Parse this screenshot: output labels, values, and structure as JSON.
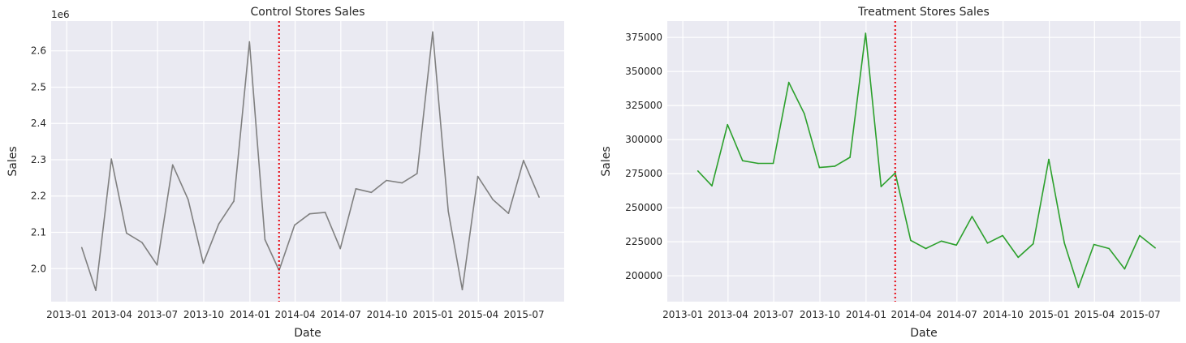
{
  "chart_data": [
    {
      "type": "line",
      "title": "Control Stores Sales",
      "xlabel": "Date",
      "ylabel": "Sales",
      "y_offset_label": "1e6",
      "x_tick_labels": [
        "2013-01",
        "2013-04",
        "2013-07",
        "2013-10",
        "2014-01",
        "2014-04",
        "2014-07",
        "2014-10",
        "2015-01",
        "2015-04",
        "2015-07"
      ],
      "y_tick_labels": [
        "2.0",
        "2.1",
        "2.2",
        "2.3",
        "2.4",
        "2.5",
        "2.6"
      ],
      "xlim": [
        "2012-12-01",
        "2015-09-19"
      ],
      "ylim": [
        1.909,
        2.682
      ],
      "y_scale": 1000000,
      "grid": true,
      "intervention_date": "2014-02-28",
      "series": [
        {
          "color": "#808080",
          "x": [
            "2013-01-31",
            "2013-02-28",
            "2013-03-31",
            "2013-04-30",
            "2013-05-31",
            "2013-06-30",
            "2013-07-31",
            "2013-08-31",
            "2013-09-30",
            "2013-10-31",
            "2013-11-30",
            "2013-12-31",
            "2014-01-31",
            "2014-02-28",
            "2014-03-31",
            "2014-04-30",
            "2014-05-31",
            "2014-06-30",
            "2014-07-31",
            "2014-08-31",
            "2014-09-30",
            "2014-10-31",
            "2014-11-30",
            "2014-12-31",
            "2015-01-31",
            "2015-02-28",
            "2015-03-31",
            "2015-04-30",
            "2015-05-31",
            "2015-06-30",
            "2015-07-31"
          ],
          "y": [
            2.058,
            1.94,
            2.302,
            2.098,
            2.072,
            2.01,
            2.286,
            2.19,
            2.015,
            2.123,
            2.186,
            2.625,
            2.08,
            1.995,
            2.12,
            2.151,
            2.155,
            2.055,
            2.22,
            2.21,
            2.243,
            2.236,
            2.262,
            2.652,
            2.158,
            1.942,
            2.254,
            2.19,
            2.152,
            2.298,
            2.197
          ]
        }
      ],
      "vline": {
        "color": "#e8000b",
        "style": "dotted"
      }
    },
    {
      "type": "line",
      "title": "Treatment Stores Sales",
      "xlabel": "Date",
      "ylabel": "Sales",
      "x_tick_labels": [
        "2013-01",
        "2013-04",
        "2013-07",
        "2013-10",
        "2014-01",
        "2014-04",
        "2014-07",
        "2014-10",
        "2015-01",
        "2015-04",
        "2015-07"
      ],
      "y_tick_labels": [
        "200000",
        "225000",
        "250000",
        "275000",
        "300000",
        "325000",
        "350000",
        "375000"
      ],
      "xlim": [
        "2012-12-01",
        "2015-09-19"
      ],
      "ylim": [
        181000,
        387000
      ],
      "y_scale": 1,
      "grid": true,
      "intervention_date": "2014-02-28",
      "series": [
        {
          "color": "#2ca02c",
          "x": [
            "2013-01-31",
            "2013-02-28",
            "2013-03-31",
            "2013-04-30",
            "2013-05-31",
            "2013-06-30",
            "2013-07-31",
            "2013-08-31",
            "2013-09-30",
            "2013-10-31",
            "2013-11-30",
            "2013-12-31",
            "2014-01-31",
            "2014-02-28",
            "2014-03-31",
            "2014-04-30",
            "2014-05-31",
            "2014-06-30",
            "2014-07-31",
            "2014-08-31",
            "2014-09-30",
            "2014-10-31",
            "2014-11-30",
            "2014-12-31",
            "2015-01-31",
            "2015-02-28",
            "2015-03-31",
            "2015-04-30",
            "2015-05-31",
            "2015-06-30",
            "2015-07-31"
          ],
          "y": [
            277000,
            266000,
            311000,
            284500,
            282500,
            282500,
            342000,
            319000,
            279500,
            280500,
            287000,
            378000,
            265500,
            275500,
            226000,
            220000,
            225500,
            222500,
            243500,
            224000,
            229500,
            213500,
            223500,
            285500,
            224000,
            191500,
            223000,
            220000,
            205000,
            229500,
            220500
          ]
        }
      ],
      "vline": {
        "color": "#e8000b",
        "style": "dotted"
      }
    }
  ]
}
